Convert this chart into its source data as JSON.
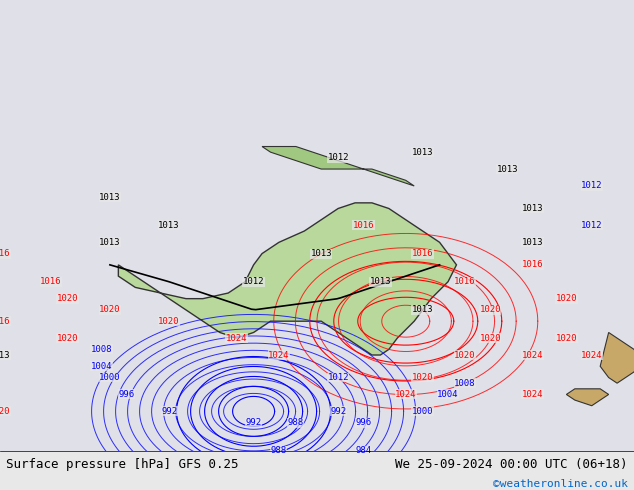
{
  "title_left": "Surface pressure [hPa] GFS 0.25",
  "title_right": "We 25-09-2024 00:00 UTC (06+18)",
  "copyright": "©weatheronline.co.uk",
  "bg_color": "#e8e8e8",
  "map_bg_color": "#e8e8e8",
  "figsize": [
    6.34,
    4.9
  ],
  "dpi": 100
}
